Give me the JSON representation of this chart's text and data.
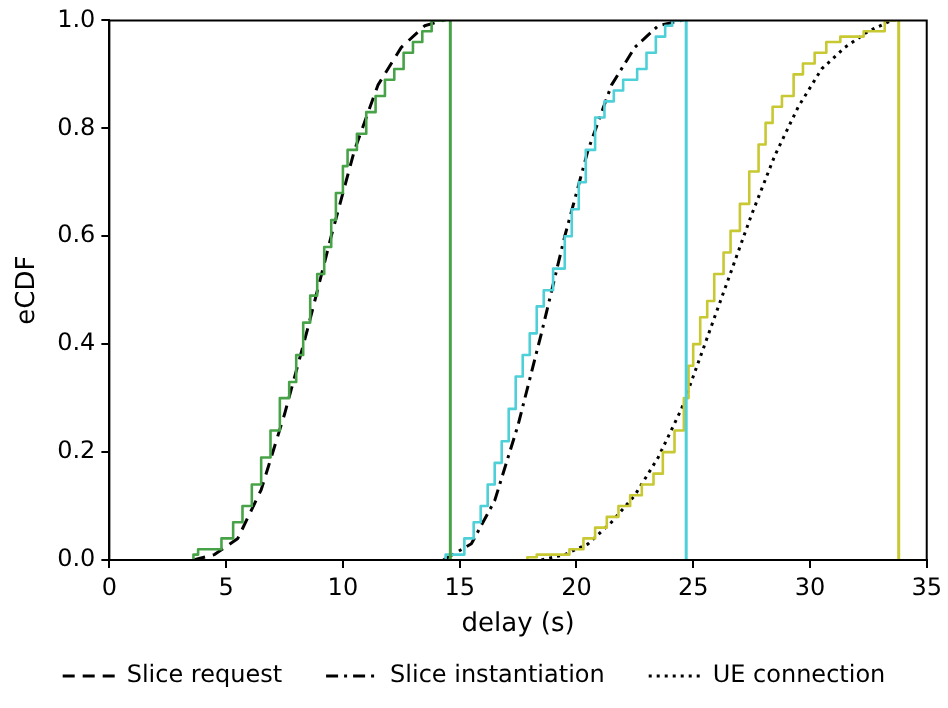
{
  "chart_data": {
    "type": "step",
    "xlabel": "delay (s)",
    "ylabel": "eCDF",
    "xlim": [
      0,
      35
    ],
    "ylim": [
      0,
      1
    ],
    "xticks": [
      0,
      5,
      10,
      15,
      20,
      25,
      30,
      35
    ],
    "yticks": [
      {
        "value": 0,
        "label": "0.0"
      },
      {
        "value": 0.2,
        "label": "0.2"
      },
      {
        "value": 0.4,
        "label": "0.4"
      },
      {
        "value": 0.6,
        "label": "0.6"
      },
      {
        "value": 0.8,
        "label": "0.8"
      },
      {
        "value": 1,
        "label": "1.0"
      }
    ],
    "grid": false,
    "legend": "bottom",
    "marker": "none",
    "series": [
      {
        "type": "step",
        "color": "#48a348",
        "x": [
          3.6,
          3.8,
          4.8,
          5.3,
          5.7,
          6.1,
          6.5,
          6.9,
          7.3,
          7.7,
          8.0,
          8.3,
          8.6,
          8.9,
          9.2,
          9.5,
          9.7,
          10.0,
          10.2,
          10.6,
          11.0,
          11.4,
          11.8,
          12.2,
          12.6,
          13.0,
          13.4,
          13.8,
          14.4
        ],
        "values": [
          0,
          0.01,
          0.02,
          0.04,
          0.07,
          0.1,
          0.14,
          0.19,
          0.24,
          0.3,
          0.33,
          0.38,
          0.44,
          0.49,
          0.53,
          0.58,
          0.63,
          0.68,
          0.73,
          0.76,
          0.79,
          0.83,
          0.86,
          0.89,
          0.91,
          0.94,
          0.96,
          0.98,
          1.0
        ]
      },
      {
        "type": "step",
        "color": "#4dd0d8",
        "x": [
          14.4,
          15.2,
          15.6,
          15.9,
          16.2,
          16.5,
          16.8,
          17.1,
          17.4,
          17.7,
          18.0,
          18.3,
          18.6,
          19.0,
          19.5,
          19.8,
          20.1,
          20.4,
          20.8,
          21.2,
          21.6,
          22.0,
          22.6,
          23.0,
          23.4,
          23.8,
          24.1,
          24.6
        ],
        "values": [
          0,
          0.01,
          0.04,
          0.07,
          0.1,
          0.14,
          0.18,
          0.22,
          0.28,
          0.34,
          0.38,
          0.42,
          0.47,
          0.5,
          0.54,
          0.6,
          0.65,
          0.7,
          0.76,
          0.82,
          0.85,
          0.87,
          0.89,
          0.91,
          0.94,
          0.97,
          0.99,
          1.0
        ]
      },
      {
        "type": "step",
        "color": "#c8c832",
        "x": [
          17.9,
          18.3,
          19.7,
          20.3,
          20.8,
          21.3,
          21.8,
          22.3,
          22.8,
          23.3,
          23.7,
          24.2,
          24.6,
          24.8,
          25.0,
          25.3,
          25.6,
          25.9,
          26.3,
          26.6,
          27.0,
          27.4,
          27.8,
          28.1,
          28.4,
          28.8,
          29.3,
          29.7,
          30.2,
          30.7,
          31.3,
          32.3,
          33.2,
          33.7
        ],
        "values": [
          0,
          0.005,
          0.01,
          0.02,
          0.04,
          0.06,
          0.08,
          0.1,
          0.12,
          0.14,
          0.16,
          0.2,
          0.24,
          0.3,
          0.36,
          0.4,
          0.45,
          0.48,
          0.53,
          0.57,
          0.61,
          0.66,
          0.72,
          0.77,
          0.81,
          0.84,
          0.86,
          0.9,
          0.92,
          0.94,
          0.96,
          0.97,
          0.98,
          1.0
        ]
      },
      {
        "type": "line",
        "name": "Slice request",
        "color": "#000000",
        "line_style": "dashed",
        "x": [
          3.6,
          4.5,
          5.5,
          6.5,
          7.5,
          8.5,
          9.5,
          10.5,
          11.5,
          12.5,
          13.5,
          14.3
        ],
        "values": [
          0,
          0.01,
          0.04,
          0.13,
          0.27,
          0.43,
          0.6,
          0.76,
          0.88,
          0.95,
          0.99,
          1.0
        ]
      },
      {
        "type": "line",
        "name": "Slice instantiation",
        "color": "#000000",
        "line_style": "dashdot",
        "x": [
          14.3,
          15.5,
          16.5,
          17.5,
          18.5,
          19.5,
          20.5,
          21.5,
          22.5,
          23.5,
          24.5
        ],
        "values": [
          0,
          0.03,
          0.11,
          0.25,
          0.42,
          0.6,
          0.76,
          0.88,
          0.95,
          0.99,
          1.0
        ]
      },
      {
        "type": "line",
        "name": "UE connection",
        "color": "#000000",
        "line_style": "dotted",
        "x": [
          18.5,
          19.5,
          20.5,
          21.5,
          22.5,
          23.5,
          24.5,
          25.5,
          26.5,
          27.5,
          28.5,
          29.5,
          30.5,
          31.5,
          32.5,
          33.5
        ],
        "values": [
          0,
          0.01,
          0.03,
          0.07,
          0.12,
          0.19,
          0.28,
          0.4,
          0.52,
          0.64,
          0.75,
          0.84,
          0.91,
          0.95,
          0.98,
          1.0
        ]
      }
    ],
    "ref_lines": [
      {
        "axis": "x",
        "value": 14.6,
        "color": "#48a348"
      },
      {
        "axis": "x",
        "value": 24.7,
        "color": "#4dd0d8"
      },
      {
        "axis": "x",
        "value": 33.8,
        "color": "#c8c832"
      }
    ]
  }
}
